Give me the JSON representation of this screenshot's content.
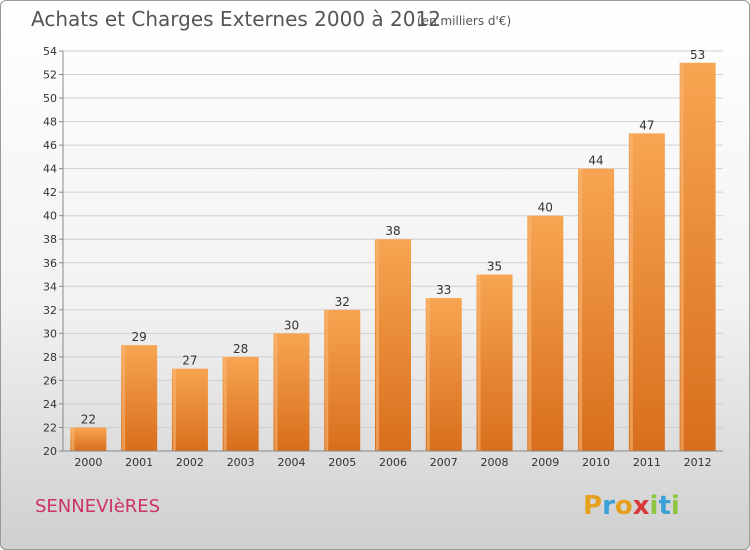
{
  "chart_data": {
    "type": "bar",
    "title": "Achats et Charges Externes 2000 à 2012",
    "subtitle": "(en milliers d'€)",
    "categories": [
      "2000",
      "2001",
      "2002",
      "2003",
      "2004",
      "2005",
      "2006",
      "2007",
      "2008",
      "2009",
      "2010",
      "2011",
      "2012"
    ],
    "values": [
      22,
      29,
      27,
      28,
      30,
      32,
      38,
      33,
      35,
      40,
      44,
      47,
      53
    ],
    "ylim": [
      20,
      54
    ],
    "yticks": [
      20,
      22,
      24,
      26,
      28,
      30,
      32,
      34,
      36,
      38,
      40,
      42,
      44,
      46,
      48,
      50,
      52,
      54
    ],
    "grid": true,
    "bar_color": "#f0923a",
    "bar_color_dark": "#d86e1c",
    "grid_color": "#d0d0d0",
    "axis_text_color": "#333333"
  },
  "footer": {
    "commune": "SENNEVIèRES",
    "logo": "Proxiti",
    "logo_colors": [
      "#e6a020",
      "#3aa0d8",
      "#e6a020",
      "#d83a3a",
      "#8cc63f",
      "#3aa0d8",
      "#8cc63f"
    ]
  }
}
